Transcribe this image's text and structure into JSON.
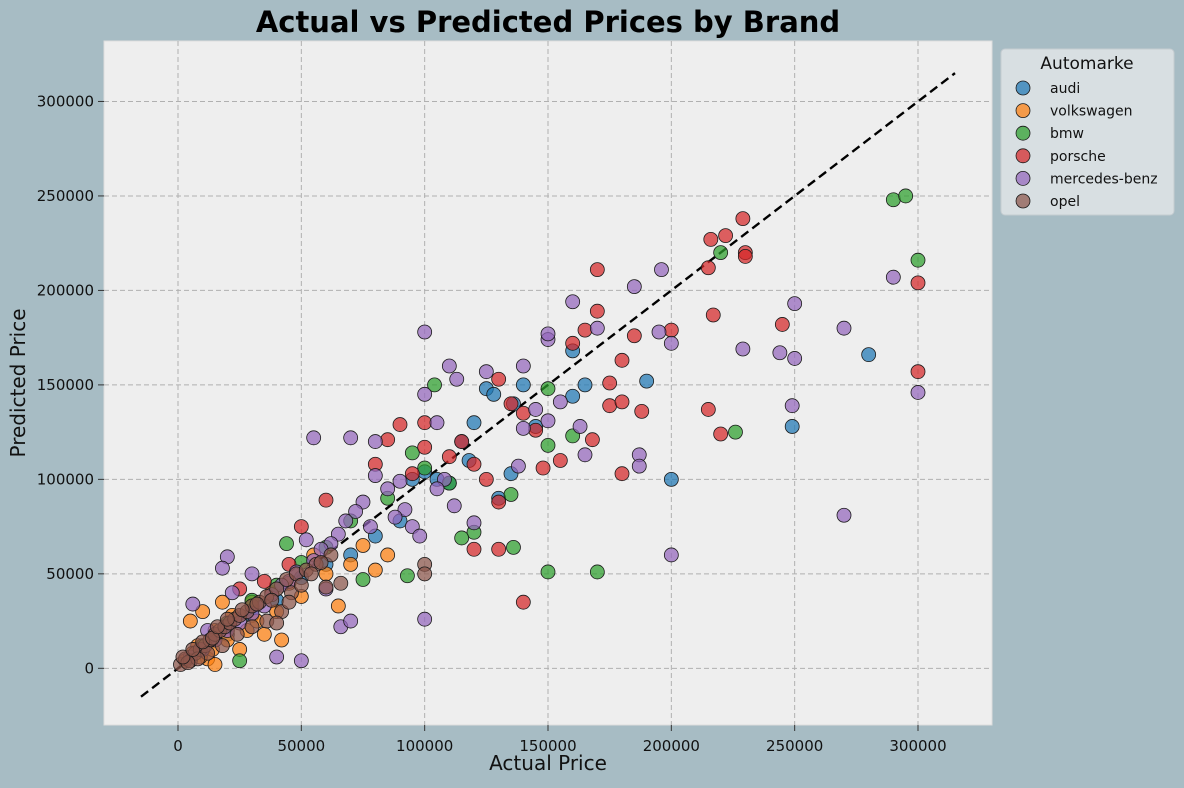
{
  "chart_data": {
    "type": "scatter",
    "title": "Actual vs Predicted Prices by Brand",
    "xlabel": "Actual Price",
    "ylabel": "Predicted Price",
    "xlim": [
      -30000,
      330000
    ],
    "ylim": [
      -30000,
      332000
    ],
    "xticks": [
      0,
      50000,
      100000,
      150000,
      200000,
      250000,
      300000
    ],
    "yticks": [
      0,
      50000,
      100000,
      150000,
      200000,
      250000,
      300000
    ],
    "grid": true,
    "legend_title": "Automarke",
    "legend_position": "outside-top-right",
    "reference_line": {
      "style": "dashed",
      "color": "#000000",
      "from": [
        -15000,
        -15000
      ],
      "to": [
        315000,
        315000
      ]
    },
    "series": [
      {
        "name": "audi",
        "color": "#1f77b4",
        "points": [
          [
            160000,
            168000
          ],
          [
            160000,
            144000
          ],
          [
            165000,
            150000
          ],
          [
            190000,
            152000
          ],
          [
            200000,
            100000
          ],
          [
            249000,
            128000
          ],
          [
            280000,
            166000
          ],
          [
            135000,
            103000
          ],
          [
            130000,
            90000
          ],
          [
            125000,
            148000
          ],
          [
            120000,
            130000
          ],
          [
            110000,
            98000
          ],
          [
            140000,
            150000
          ],
          [
            128000,
            145000
          ],
          [
            115000,
            120000
          ],
          [
            100000,
            104000
          ],
          [
            90000,
            78000
          ],
          [
            80000,
            70000
          ],
          [
            70000,
            60000
          ],
          [
            60000,
            55000
          ],
          [
            50000,
            48000
          ],
          [
            40000,
            36000
          ],
          [
            30000,
            28000
          ],
          [
            20000,
            18000
          ],
          [
            10000,
            9000
          ],
          [
            118000,
            110000
          ],
          [
            136000,
            140000
          ],
          [
            145000,
            128000
          ],
          [
            105000,
            100000
          ],
          [
            95000,
            100000
          ]
        ]
      },
      {
        "name": "volkswagen",
        "color": "#ff7f0e",
        "points": [
          [
            5000,
            25000
          ],
          [
            8000,
            12000
          ],
          [
            10000,
            30000
          ],
          [
            12000,
            5000
          ],
          [
            15000,
            2000
          ],
          [
            15000,
            20000
          ],
          [
            18000,
            35000
          ],
          [
            20000,
            15000
          ],
          [
            22000,
            28000
          ],
          [
            25000,
            10000
          ],
          [
            28000,
            20000
          ],
          [
            30000,
            35000
          ],
          [
            32000,
            25000
          ],
          [
            35000,
            18000
          ],
          [
            38000,
            40000
          ],
          [
            40000,
            30000
          ],
          [
            42000,
            15000
          ],
          [
            45000,
            45000
          ],
          [
            50000,
            38000
          ],
          [
            55000,
            60000
          ],
          [
            60000,
            50000
          ],
          [
            65000,
            33000
          ],
          [
            70000,
            55000
          ],
          [
            75000,
            65000
          ],
          [
            80000,
            52000
          ],
          [
            85000,
            60000
          ],
          [
            6000,
            8000
          ],
          [
            3000,
            4000
          ],
          [
            9000,
            6000
          ],
          [
            14000,
            10000
          ]
        ]
      },
      {
        "name": "bmw",
        "color": "#2ca02c",
        "points": [
          [
            290000,
            248000
          ],
          [
            295000,
            250000
          ],
          [
            300000,
            216000
          ],
          [
            220000,
            220000
          ],
          [
            226000,
            125000
          ],
          [
            170000,
            51000
          ],
          [
            150000,
            51000
          ],
          [
            136000,
            64000
          ],
          [
            120000,
            72000
          ],
          [
            115000,
            69000
          ],
          [
            93000,
            49000
          ],
          [
            75000,
            47000
          ],
          [
            44000,
            66000
          ],
          [
            25000,
            4000
          ],
          [
            104000,
            150000
          ],
          [
            150000,
            148000
          ],
          [
            150000,
            118000
          ],
          [
            160000,
            123000
          ],
          [
            135000,
            92000
          ],
          [
            110000,
            98000
          ],
          [
            95000,
            114000
          ],
          [
            100000,
            106000
          ],
          [
            85000,
            90000
          ],
          [
            70000,
            78000
          ],
          [
            60000,
            64000
          ],
          [
            50000,
            56000
          ],
          [
            40000,
            44000
          ],
          [
            30000,
            36000
          ],
          [
            20000,
            24000
          ],
          [
            10000,
            12000
          ]
        ]
      },
      {
        "name": "porsche",
        "color": "#d62728",
        "points": [
          [
            229000,
            238000
          ],
          [
            222000,
            229000
          ],
          [
            216000,
            227000
          ],
          [
            230000,
            220000
          ],
          [
            230000,
            218000
          ],
          [
            215000,
            212000
          ],
          [
            170000,
            211000
          ],
          [
            217000,
            187000
          ],
          [
            170000,
            189000
          ],
          [
            200000,
            179000
          ],
          [
            165000,
            179000
          ],
          [
            245000,
            182000
          ],
          [
            300000,
            204000
          ],
          [
            300000,
            157000
          ],
          [
            160000,
            172000
          ],
          [
            175000,
            151000
          ],
          [
            180000,
            163000
          ],
          [
            185000,
            176000
          ],
          [
            188000,
            136000
          ],
          [
            175000,
            139000
          ],
          [
            180000,
            141000
          ],
          [
            215000,
            137000
          ],
          [
            220000,
            124000
          ],
          [
            168000,
            121000
          ],
          [
            180000,
            103000
          ],
          [
            155000,
            110000
          ],
          [
            148000,
            106000
          ],
          [
            140000,
            35000
          ],
          [
            130000,
            63000
          ],
          [
            120000,
            63000
          ],
          [
            130000,
            88000
          ],
          [
            125000,
            100000
          ],
          [
            120000,
            108000
          ],
          [
            115000,
            120000
          ],
          [
            110000,
            112000
          ],
          [
            100000,
            130000
          ],
          [
            100000,
            117000
          ],
          [
            95000,
            103000
          ],
          [
            90000,
            129000
          ],
          [
            85000,
            121000
          ],
          [
            80000,
            108000
          ],
          [
            60000,
            89000
          ],
          [
            50000,
            75000
          ],
          [
            130000,
            153000
          ],
          [
            135000,
            140000
          ],
          [
            140000,
            135000
          ],
          [
            145000,
            126000
          ],
          [
            25000,
            42000
          ],
          [
            35000,
            46000
          ],
          [
            45000,
            55000
          ]
        ]
      },
      {
        "name": "mercedes-benz",
        "color": "#9467bd",
        "points": [
          [
            55000,
            122000
          ],
          [
            70000,
            122000
          ],
          [
            100000,
            178000
          ],
          [
            100000,
            145000
          ],
          [
            100000,
            26000
          ],
          [
            50000,
            4000
          ],
          [
            40000,
            6000
          ],
          [
            20000,
            59000
          ],
          [
            18000,
            53000
          ],
          [
            6000,
            34000
          ],
          [
            66000,
            22000
          ],
          [
            70000,
            25000
          ],
          [
            105000,
            130000
          ],
          [
            110000,
            160000
          ],
          [
            113000,
            153000
          ],
          [
            125000,
            157000
          ],
          [
            140000,
            160000
          ],
          [
            150000,
            174000
          ],
          [
            150000,
            177000
          ],
          [
            160000,
            194000
          ],
          [
            170000,
            180000
          ],
          [
            185000,
            202000
          ],
          [
            200000,
            172000
          ],
          [
            196000,
            211000
          ],
          [
            200000,
            60000
          ],
          [
            229000,
            169000
          ],
          [
            244000,
            167000
          ],
          [
            250000,
            164000
          ],
          [
            250000,
            193000
          ],
          [
            249000,
            139000
          ],
          [
            270000,
            180000
          ],
          [
            270000,
            81000
          ],
          [
            290000,
            207000
          ],
          [
            300000,
            146000
          ],
          [
            195000,
            178000
          ],
          [
            187000,
            113000
          ],
          [
            187000,
            107000
          ],
          [
            165000,
            113000
          ],
          [
            163000,
            128000
          ],
          [
            155000,
            141000
          ],
          [
            150000,
            131000
          ],
          [
            145000,
            137000
          ],
          [
            140000,
            127000
          ],
          [
            138000,
            107000
          ],
          [
            120000,
            77000
          ],
          [
            112000,
            86000
          ],
          [
            108000,
            100000
          ],
          [
            95000,
            75000
          ],
          [
            92000,
            84000
          ],
          [
            90000,
            99000
          ],
          [
            85000,
            95000
          ],
          [
            80000,
            120000
          ],
          [
            80000,
            102000
          ],
          [
            75000,
            88000
          ],
          [
            72000,
            83000
          ],
          [
            68000,
            78000
          ],
          [
            65000,
            71000
          ],
          [
            62000,
            66000
          ],
          [
            58000,
            63000
          ],
          [
            55000,
            57000
          ],
          [
            52000,
            68000
          ],
          [
            48000,
            51000
          ],
          [
            45000,
            46000
          ],
          [
            42000,
            44000
          ],
          [
            38000,
            39000
          ],
          [
            35000,
            33000
          ],
          [
            30000,
            29000
          ],
          [
            25000,
            24000
          ],
          [
            20000,
            20000
          ],
          [
            15000,
            15000
          ],
          [
            10000,
            10000
          ],
          [
            5000,
            6000
          ],
          [
            105000,
            95000
          ],
          [
            98000,
            70000
          ],
          [
            88000,
            80000
          ],
          [
            78000,
            75000
          ],
          [
            60000,
            42000
          ],
          [
            30000,
            50000
          ],
          [
            22000,
            40000
          ],
          [
            12000,
            20000
          ]
        ]
      },
      {
        "name": "opel",
        "color": "#8c564b",
        "points": [
          [
            1000,
            2000
          ],
          [
            3000,
            5000
          ],
          [
            5000,
            4000
          ],
          [
            7000,
            8000
          ],
          [
            9000,
            10000
          ],
          [
            11000,
            12000
          ],
          [
            13000,
            15000
          ],
          [
            15000,
            18000
          ],
          [
            17000,
            20000
          ],
          [
            19000,
            22000
          ],
          [
            21000,
            24000
          ],
          [
            23000,
            26000
          ],
          [
            25000,
            28000
          ],
          [
            28000,
            30000
          ],
          [
            30000,
            33000
          ],
          [
            33000,
            35000
          ],
          [
            36000,
            38000
          ],
          [
            40000,
            42000
          ],
          [
            44000,
            47000
          ],
          [
            48000,
            50000
          ],
          [
            52000,
            52000
          ],
          [
            56000,
            55000
          ],
          [
            62000,
            60000
          ],
          [
            66000,
            45000
          ],
          [
            42000,
            30000
          ],
          [
            36000,
            25000
          ],
          [
            30000,
            22000
          ],
          [
            24000,
            18000
          ],
          [
            18000,
            12000
          ],
          [
            12000,
            8000
          ],
          [
            8000,
            5000
          ],
          [
            4000,
            3000
          ],
          [
            2000,
            6000
          ],
          [
            6000,
            10000
          ],
          [
            10000,
            14000
          ],
          [
            14000,
            16000
          ],
          [
            16000,
            22000
          ],
          [
            20000,
            26000
          ],
          [
            26000,
            31000
          ],
          [
            32000,
            34000
          ],
          [
            38000,
            36000
          ],
          [
            46000,
            40000
          ],
          [
            50000,
            44000
          ],
          [
            54000,
            50000
          ],
          [
            58000,
            56000
          ],
          [
            100000,
            55000
          ],
          [
            100000,
            50000
          ],
          [
            60000,
            43000
          ],
          [
            45000,
            35000
          ],
          [
            40000,
            24000
          ]
        ]
      }
    ]
  }
}
